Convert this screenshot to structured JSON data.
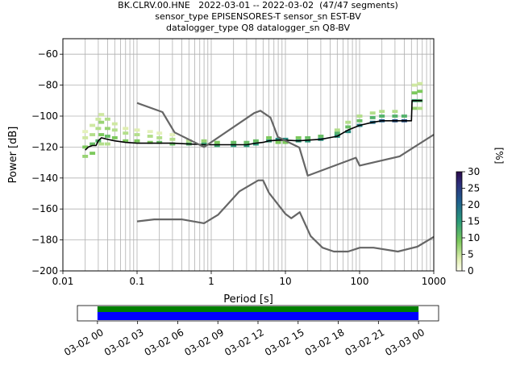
{
  "title_lines": [
    "BK.CLRV.00.HNE   2022-03-01 -- 2022-03-02  (47/47 segments)",
    "sensor_type EPISENSORES-T sensor_sn EST-BV",
    "datalogger_type Q8 datalogger_sn Q8-BV"
  ],
  "colors": {
    "noise_model": "#666666",
    "mode_line": "#000000",
    "grid": "#b0b0b0",
    "availability_data": "#0000ff",
    "availability_gaps": "#008000"
  },
  "chart_data": [
    {
      "type": "heatmap",
      "title": "",
      "xlabel": "Period [s]",
      "ylabel": "Power [dB]",
      "xscale": "log",
      "xlim": [
        0.01,
        1000
      ],
      "ylim": [
        -200,
        -50
      ],
      "grid": true,
      "x_tick_labels": [
        "0.01",
        "0.1",
        "1",
        "10",
        "100",
        "1000"
      ],
      "y_tick_labels": [
        "−200",
        "−180",
        "−160",
        "−140",
        "−120",
        "−100",
        "−80",
        "−60"
      ],
      "colorbar": {
        "label": "[%]",
        "range": [
          0,
          30
        ],
        "tick_labels": [
          "0",
          "5",
          "10",
          "15",
          "20",
          "25",
          "30"
        ]
      },
      "series": [
        {
          "x": [
            0.02,
            0.022,
            0.025,
            0.028,
            0.03,
            0.033,
            0.04,
            0.05,
            0.07,
            0.1,
            0.15,
            0.2,
            0.3,
            0.5,
            0.8,
            1,
            2,
            3,
            4,
            5,
            6,
            8,
            10,
            15,
            20,
            30,
            50,
            70,
            100,
            150,
            200,
            300,
            400,
            500,
            510,
            700
          ],
          "y": [
            -122,
            -120,
            -119,
            -119,
            -116,
            -114,
            -115,
            -116,
            -117,
            -117.5,
            -117.5,
            -117.5,
            -117.5,
            -118,
            -118.5,
            -118.5,
            -118.5,
            -118.5,
            -117.5,
            -117,
            -116,
            -115.5,
            -115.5,
            -116,
            -115.5,
            -115,
            -113,
            -109,
            -106,
            -104,
            -103,
            -103,
            -103,
            -103,
            -90,
            -90
          ]
        },
        {
          "x": [
            0.1,
            0.22,
            0.32,
            0.8,
            3.8,
            4.6,
            6.3,
            7.9,
            15.4,
            20,
            89.1,
            100,
            346.7,
            1000
          ],
          "y": [
            -91.5,
            -97.4,
            -110.5,
            -120,
            -98,
            -96.5,
            -101,
            -113.5,
            -120.3,
            -138.5,
            -126.9,
            -132,
            -126,
            -112
          ]
        },
        {
          "x": [
            0.1,
            0.17,
            0.4,
            0.8,
            1.24,
            2.4,
            4.3,
            5,
            6,
            10,
            12,
            15.6,
            21.9,
            31.6,
            45,
            70,
            101,
            154,
            328,
            600,
            1000
          ],
          "y": [
            -168,
            -166.7,
            -166.7,
            -169.2,
            -163.7,
            -148.6,
            -141.5,
            -141.5,
            -149.6,
            -163.2,
            -166,
            -162.1,
            -177.5,
            -185,
            -187.5,
            -187.5,
            -185,
            -185,
            -187.5,
            -184.4,
            -178
          ]
        }
      ],
      "heatmap_cells": [
        [
          0.02,
          -120,
          0.3
        ],
        [
          0.02,
          -114,
          0.15
        ],
        [
          0.02,
          -110,
          0.1
        ],
        [
          0.02,
          -126,
          0.25
        ],
        [
          0.025,
          -118,
          0.35
        ],
        [
          0.025,
          -112,
          0.2
        ],
        [
          0.025,
          -106,
          0.15
        ],
        [
          0.025,
          -124,
          0.3
        ],
        [
          0.03,
          -116,
          0.4
        ],
        [
          0.03,
          -108,
          0.2
        ],
        [
          0.03,
          -102,
          0.15
        ],
        [
          0.033,
          -112,
          0.3
        ],
        [
          0.033,
          -104,
          0.25
        ],
        [
          0.033,
          -99,
          0.15
        ],
        [
          0.033,
          -118,
          0.2
        ],
        [
          0.04,
          -113,
          0.35
        ],
        [
          0.04,
          -108,
          0.25
        ],
        [
          0.04,
          -102,
          0.2
        ],
        [
          0.04,
          -118,
          0.2
        ],
        [
          0.05,
          -114,
          0.3
        ],
        [
          0.05,
          -109,
          0.2
        ],
        [
          0.05,
          -105,
          0.15
        ],
        [
          0.07,
          -116,
          0.3
        ],
        [
          0.07,
          -111,
          0.2
        ],
        [
          0.07,
          -108,
          0.12
        ],
        [
          0.1,
          -116,
          0.3
        ],
        [
          0.1,
          -112,
          0.2
        ],
        [
          0.1,
          -109,
          0.12
        ],
        [
          0.15,
          -117,
          0.3
        ],
        [
          0.15,
          -113,
          0.2
        ],
        [
          0.15,
          -110,
          0.1
        ],
        [
          0.2,
          -117,
          0.35
        ],
        [
          0.2,
          -114,
          0.2
        ],
        [
          0.2,
          -111,
          0.1
        ],
        [
          0.3,
          -118,
          0.35
        ],
        [
          0.3,
          -115,
          0.2
        ],
        [
          0.3,
          -112,
          0.1
        ],
        [
          0.5,
          -118,
          0.4
        ],
        [
          0.5,
          -116,
          0.2
        ],
        [
          0.8,
          -118,
          0.45
        ],
        [
          0.8,
          -116,
          0.25
        ],
        [
          1.2,
          -119,
          0.45
        ],
        [
          1.2,
          -117,
          0.3
        ],
        [
          2,
          -119,
          0.5
        ],
        [
          2,
          -117,
          0.35
        ],
        [
          3,
          -119,
          0.5
        ],
        [
          3,
          -117,
          0.35
        ],
        [
          4,
          -118,
          0.5
        ],
        [
          4,
          -116,
          0.35
        ],
        [
          6,
          -116,
          0.5
        ],
        [
          6,
          -114,
          0.3
        ],
        [
          8,
          -115,
          0.55
        ],
        [
          8,
          -117,
          0.3
        ],
        [
          10,
          -115,
          0.55
        ],
        [
          10,
          -117,
          0.3
        ],
        [
          15,
          -116,
          0.5
        ],
        [
          15,
          -114,
          0.3
        ],
        [
          20,
          -116,
          0.5
        ],
        [
          20,
          -114,
          0.35
        ],
        [
          30,
          -115,
          0.55
        ],
        [
          30,
          -113,
          0.35
        ],
        [
          50,
          -113,
          0.55
        ],
        [
          50,
          -111,
          0.4
        ],
        [
          50,
          -109,
          0.2
        ],
        [
          70,
          -110,
          0.55
        ],
        [
          70,
          -107,
          0.35
        ],
        [
          70,
          -104,
          0.2
        ],
        [
          100,
          -106,
          0.6
        ],
        [
          100,
          -103,
          0.35
        ],
        [
          100,
          -100,
          0.2
        ],
        [
          150,
          -104,
          0.65
        ],
        [
          150,
          -101,
          0.4
        ],
        [
          150,
          -98,
          0.2
        ],
        [
          200,
          -103,
          0.7
        ],
        [
          200,
          -100,
          0.4
        ],
        [
          200,
          -97,
          0.2
        ],
        [
          300,
          -103,
          0.75
        ],
        [
          300,
          -100,
          0.4
        ],
        [
          300,
          -97,
          0.2
        ],
        [
          400,
          -103,
          0.75
        ],
        [
          400,
          -100,
          0.4
        ],
        [
          550,
          -90,
          0.45
        ],
        [
          550,
          -85,
          0.3
        ],
        [
          550,
          -80,
          0.15
        ],
        [
          550,
          -95,
          0.25
        ],
        [
          650,
          -90,
          0.4
        ],
        [
          650,
          -84,
          0.3
        ],
        [
          650,
          -79,
          0.15
        ],
        [
          650,
          -95,
          0.2
        ]
      ]
    },
    {
      "type": "bar",
      "title": "",
      "xlabel": "",
      "ylabel": "",
      "x_tick_labels": [
        "03-02 00",
        "03-02 03",
        "03-02 06",
        "03-02 09",
        "03-02 12",
        "03-02 15",
        "03-02 18",
        "03-02 21",
        "03-03 00"
      ],
      "xlim": [
        "2022-03-01 22:30",
        "2022-03-03 01:30"
      ],
      "series": [
        {
          "start": "2022-03-02 00:00",
          "end": "2022-03-03 00:00"
        }
      ]
    }
  ]
}
